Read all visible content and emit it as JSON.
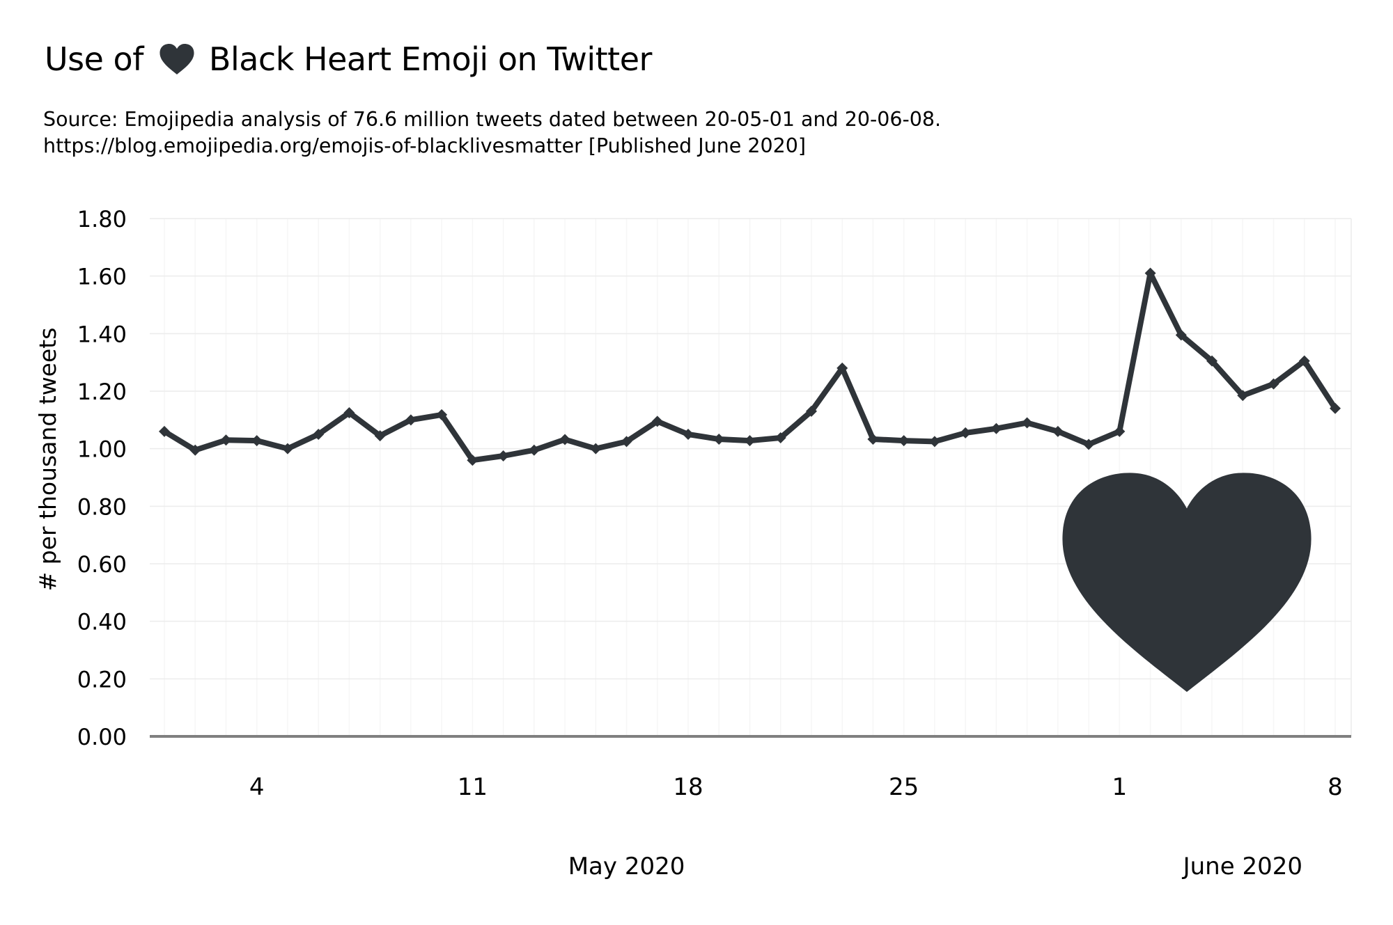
{
  "title": {
    "before": "Use of",
    "after": "Black Heart Emoji on Twitter",
    "emoji_icon": "black-heart-icon"
  },
  "subtitle": {
    "line1": "Source: Emojipedia analysis of 76.6 million tweets dated between 20-05-01 and 20-06-08.",
    "line2": "https://blog.emojipedia.org/emojis-of-blacklivesmatter [Published June 2020]"
  },
  "colors": {
    "line": "#2f3439",
    "heart": "#2f3439",
    "grid": "#ececec",
    "minor_grid": "#f6f6f6",
    "axis": "#808080"
  },
  "chart_data": {
    "type": "line",
    "ylabel": "# per thousand tweets",
    "xlabel": "",
    "ylim": [
      0,
      1.8
    ],
    "yticks": [
      "0.00",
      "0.20",
      "0.40",
      "0.60",
      "0.80",
      "1.00",
      "1.20",
      "1.40",
      "1.60",
      "1.80"
    ],
    "x_range": [
      "2020-04-30",
      "2020-06-08"
    ],
    "xticks": [
      {
        "date": "2020-05-04",
        "label": "4"
      },
      {
        "date": "2020-05-11",
        "label": "11"
      },
      {
        "date": "2020-05-18",
        "label": "18"
      },
      {
        "date": "2020-05-25",
        "label": "25"
      },
      {
        "date": "2020-06-01",
        "label": "1"
      },
      {
        "date": "2020-06-08",
        "label": "8"
      }
    ],
    "month_labels": [
      {
        "label": "May 2020",
        "date": "2020-05-16"
      },
      {
        "label": "June 2020",
        "date": "2020-06-05"
      }
    ],
    "grid": true,
    "series": [
      {
        "values": [
          {
            "x": "2020-05-01",
            "y": 1.06
          },
          {
            "x": "2020-05-02",
            "y": 0.995
          },
          {
            "x": "2020-05-03",
            "y": 1.03
          },
          {
            "x": "2020-05-04",
            "y": 1.028
          },
          {
            "x": "2020-05-05",
            "y": 1.0
          },
          {
            "x": "2020-05-06",
            "y": 1.05
          },
          {
            "x": "2020-05-07",
            "y": 1.125
          },
          {
            "x": "2020-05-08",
            "y": 1.045
          },
          {
            "x": "2020-05-09",
            "y": 1.1
          },
          {
            "x": "2020-05-10",
            "y": 1.118
          },
          {
            "x": "2020-05-11",
            "y": 0.96
          },
          {
            "x": "2020-05-12",
            "y": 0.975
          },
          {
            "x": "2020-05-13",
            "y": 0.995
          },
          {
            "x": "2020-05-14",
            "y": 1.032
          },
          {
            "x": "2020-05-15",
            "y": 1.0
          },
          {
            "x": "2020-05-16",
            "y": 1.025
          },
          {
            "x": "2020-05-17",
            "y": 1.095
          },
          {
            "x": "2020-05-18",
            "y": 1.05
          },
          {
            "x": "2020-05-19",
            "y": 1.033
          },
          {
            "x": "2020-05-20",
            "y": 1.028
          },
          {
            "x": "2020-05-21",
            "y": 1.038
          },
          {
            "x": "2020-05-22",
            "y": 1.13
          },
          {
            "x": "2020-05-23",
            "y": 1.28
          },
          {
            "x": "2020-05-24",
            "y": 1.033
          },
          {
            "x": "2020-05-25",
            "y": 1.028
          },
          {
            "x": "2020-05-26",
            "y": 1.025
          },
          {
            "x": "2020-05-27",
            "y": 1.055
          },
          {
            "x": "2020-05-28",
            "y": 1.07
          },
          {
            "x": "2020-05-29",
            "y": 1.09
          },
          {
            "x": "2020-05-30",
            "y": 1.06
          },
          {
            "x": "2020-05-31",
            "y": 1.015
          },
          {
            "x": "2020-06-01",
            "y": 1.06
          },
          {
            "x": "2020-06-02",
            "y": 1.61
          },
          {
            "x": "2020-06-03",
            "y": 1.395
          },
          {
            "x": "2020-06-04",
            "y": 1.305
          },
          {
            "x": "2020-06-05",
            "y": 1.185
          },
          {
            "x": "2020-06-06",
            "y": 1.225
          },
          {
            "x": "2020-06-07",
            "y": 1.305
          },
          {
            "x": "2020-06-08",
            "y": 1.14
          }
        ]
      }
    ]
  }
}
